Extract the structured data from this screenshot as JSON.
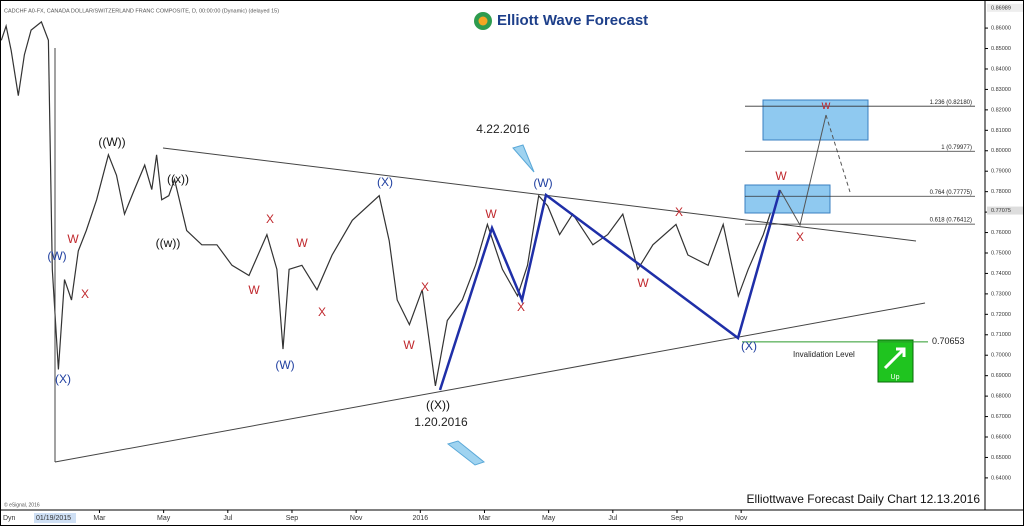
{
  "chart_data": {
    "type": "line",
    "header": "CADCHF A0-FX, CANADA DOLLAR/SWITZERLAND FRANC COMPOSITE, D, 00:00:00 (Dynamic) (delayed 15)",
    "logo": "Elliott Wave Forecast",
    "footer": "Elliottwave Forecast Daily Chart 12.13.2016",
    "copyright": "© eSignal, 2016",
    "start_date": "01/19/2015",
    "corner_label": "Dyn",
    "date_labels": [
      "4.22.2016",
      "1.20.2016"
    ],
    "button": "Up",
    "x": [
      -1.06,
      -0.91,
      -0.75,
      -0.53,
      -0.34,
      -0.13,
      0.19,
      0.41,
      0.53,
      0.72,
      0.91,
      1.13,
      1.34,
      1.59,
      1.91,
      2.28,
      2.53,
      2.78,
      3.09,
      3.41,
      3.63,
      3.78,
      3.94,
      4.16,
      4.34,
      4.72,
      5.19,
      5.66,
      6.13,
      6.66,
      7.22,
      7.53,
      7.72,
      7.91,
      8.31,
      8.78,
      9.25,
      9.88,
      10.72,
      11.03,
      11.28,
      11.66,
      12.06,
      12.47,
      12.84,
      13.31,
      13.72,
      14.09,
      14.56,
      15.03,
      15.34,
      15.69,
      15.97,
      16.34,
      16.75,
      17.38,
      17.84,
      18.31,
      18.78,
      19.25,
      19.97,
      20.34,
      20.97,
      21.44,
      21.91,
      22.22,
      22.69,
      23.09
    ],
    "series": [
      {
        "color": "#333333",
        "values": [
          0.854,
          0.861,
          0.849,
          0.827,
          0.847,
          0.859,
          0.863,
          0.854,
          0.742,
          0.693,
          0.737,
          0.727,
          0.751,
          0.761,
          0.776,
          0.798,
          0.788,
          0.769,
          0.781,
          0.793,
          0.781,
          0.798,
          0.776,
          0.778,
          0.786,
          0.761,
          0.754,
          0.754,
          0.744,
          0.739,
          0.759,
          0.742,
          0.703,
          0.742,
          0.744,
          0.732,
          0.749,
          0.766,
          0.778,
          0.756,
          0.727,
          0.715,
          0.732,
          0.685,
          0.717,
          0.727,
          0.744,
          0.764,
          0.742,
          0.729,
          0.744,
          0.778,
          0.773,
          0.759,
          0.769,
          0.754,
          0.759,
          0.769,
          0.742,
          0.754,
          0.764,
          0.749,
          0.744,
          0.764,
          0.729,
          0.742,
          0.759,
          0.778
        ]
      }
    ],
    "xlim": [
      -1.1,
      29.6
    ],
    "ylim": [
      0.6243,
      0.8708
    ],
    "xticks": [
      {
        "value": 2,
        "label": "Mar"
      },
      {
        "value": 4,
        "label": "May"
      },
      {
        "value": 6,
        "label": "Jul"
      },
      {
        "value": 8,
        "label": "Sep"
      },
      {
        "value": 10,
        "label": "Nov"
      },
      {
        "value": 12,
        "label": "2016"
      },
      {
        "value": 14,
        "label": "Mar"
      },
      {
        "value": 16,
        "label": "May"
      },
      {
        "value": 18,
        "label": "Jul"
      },
      {
        "value": 20,
        "label": "Sep"
      },
      {
        "value": 22,
        "label": "Nov"
      }
    ],
    "yticks": [
      {
        "value": 0.64,
        "label": "0.64000"
      },
      {
        "value": 0.65,
        "label": "0.65000"
      },
      {
        "value": 0.66,
        "label": "0.66000"
      },
      {
        "value": 0.67,
        "label": "0.67000"
      },
      {
        "value": 0.68,
        "label": "0.68000"
      },
      {
        "value": 0.69,
        "label": "0.69000"
      },
      {
        "value": 0.7,
        "label": "0.70000"
      },
      {
        "value": 0.71,
        "label": "0.71000"
      },
      {
        "value": 0.72,
        "label": "0.72000"
      },
      {
        "value": 0.73,
        "label": "0.73000"
      },
      {
        "value": 0.74,
        "label": "0.74000"
      },
      {
        "value": 0.75,
        "label": "0.75000"
      },
      {
        "value": 0.76,
        "label": "0.76000"
      },
      {
        "value": 0.77,
        "label": "0.77000"
      },
      {
        "value": 0.78,
        "label": "0.78000"
      },
      {
        "value": 0.79,
        "label": "0.79000"
      },
      {
        "value": 0.8,
        "label": "0.80000"
      },
      {
        "value": 0.81,
        "label": "0.81000"
      },
      {
        "value": 0.82,
        "label": "0.82000"
      },
      {
        "value": 0.83,
        "label": "0.83000"
      },
      {
        "value": 0.84,
        "label": "0.84000"
      },
      {
        "value": 0.85,
        "label": "0.85000"
      },
      {
        "value": 0.86,
        "label": "0.86000"
      }
    ],
    "price_labels": [
      0.86989,
      0.77075
    ],
    "invalidation": {
      "value": 0.70653,
      "label": "Invalidation Level"
    },
    "fib_levels": [
      {
        "value": 0.8218,
        "label": "1.236 (0.82180)"
      },
      {
        "value": 0.79977,
        "label": "1 (0.79977)"
      },
      {
        "value": 0.77775,
        "label": "0.764 (0.77775)"
      },
      {
        "value": 0.76412,
        "label": "0.618 (0.76412)"
      }
    ],
    "wave_labels": [
      {
        "text": "(W)",
        "color": "#1f3fa0"
      },
      {
        "text": "(X)",
        "color": "#1f3fa0"
      },
      {
        "text": "((W))",
        "color": "#111111"
      },
      {
        "text": "((x))",
        "color": "#111111"
      },
      {
        "text": "((w))",
        "color": "#111111"
      },
      {
        "text": "(X)",
        "color": "#1f3fa0"
      },
      {
        "text": "(W)",
        "color": "#1f3fa0"
      },
      {
        "text": "((X))",
        "color": "#111111"
      },
      {
        "text": "(W)",
        "color": "#1f3fa0"
      },
      {
        "text": "(X)",
        "color": "#1f3fa0"
      },
      {
        "text": "W",
        "color": "#c0282d"
      },
      {
        "text": "X",
        "color": "#c0282d"
      },
      {
        "text": "X",
        "color": "#c0282d"
      },
      {
        "text": "W",
        "color": "#c0282d"
      },
      {
        "text": "W",
        "color": "#c0282d"
      },
      {
        "text": "X",
        "color": "#c0282d"
      },
      {
        "text": "X",
        "color": "#c0282d"
      },
      {
        "text": "W",
        "color": "#c0282d"
      },
      {
        "text": "W",
        "color": "#c0282d"
      },
      {
        "text": "X",
        "color": "#c0282d"
      },
      {
        "text": "X",
        "color": "#c0282d"
      },
      {
        "text": "W",
        "color": "#c0282d"
      },
      {
        "text": "W",
        "color": "#c0282d"
      },
      {
        "text": "X",
        "color": "#c0282d"
      },
      {
        "text": "w",
        "color": "#c0282d"
      }
    ]
  }
}
